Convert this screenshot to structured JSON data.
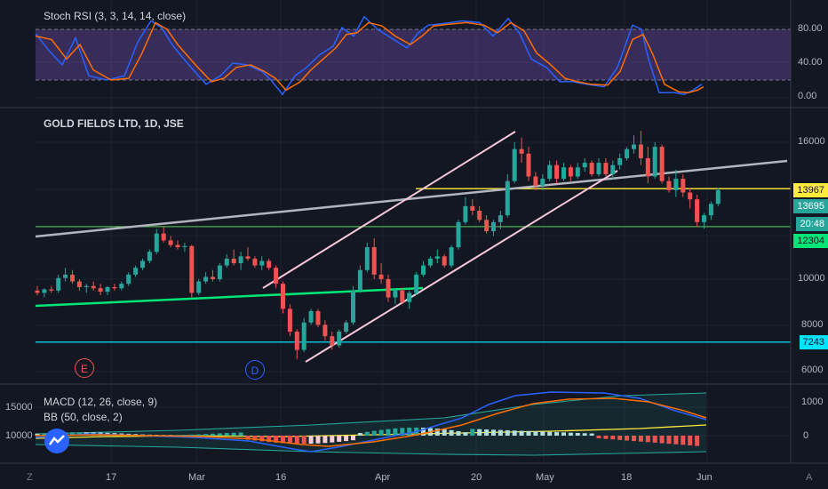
{
  "colors": {
    "background": "#131722",
    "up": "#26a69a",
    "down": "#ef5350",
    "stoch_k": "#2962ff",
    "stoch_d": "#ff6d00",
    "stoch_band": "#7e57c2",
    "trend_gray": "#b2b5be",
    "channel": "#f8c8d8",
    "support_green": "#00e676",
    "hline_yellow": "#ffeb3b",
    "hline_green": "#4caf50",
    "hline_cyan": "#00e5ff"
  },
  "stoch": {
    "title": "Stoch RSI (3, 3, 14, 14, close)",
    "axis": [
      "80.00",
      "40.00",
      "0.00"
    ]
  },
  "main": {
    "title": "GOLD FIELDS LTD, 1D, JSE",
    "axis": [
      "16000",
      "10000",
      "8000",
      "6000"
    ],
    "tags": {
      "t1": "13967",
      "t2": "13695",
      "t3": "20:48",
      "t4": "12304",
      "t5": "7243"
    },
    "markers": {
      "e": "E",
      "d": "D"
    }
  },
  "macd": {
    "title1": "MACD (12, 26, close, 9)",
    "title2": "BB (50, close, 2)",
    "left_axis": [
      "15000",
      "10000"
    ],
    "right_axis": [
      "1000",
      "0"
    ]
  },
  "time_axis": [
    "17",
    "Mar",
    "16",
    "Apr",
    "20",
    "May",
    "18",
    "Jun"
  ],
  "corner_left": "Z",
  "corner_right": "A",
  "chart_data": {
    "type": "candlestick",
    "symbol": "GOLD FIELDS LTD, 1D, JSE",
    "ohlc": [
      [
        9500,
        9700,
        9300,
        9400
      ],
      [
        9400,
        9600,
        9200,
        9550
      ],
      [
        9550,
        9700,
        9400,
        9500
      ],
      [
        9500,
        10200,
        9400,
        10050
      ],
      [
        10050,
        10500,
        9900,
        10200
      ],
      [
        10200,
        10400,
        9800,
        9900
      ],
      [
        9900,
        10000,
        9500,
        9650
      ],
      [
        9650,
        9800,
        9400,
        9700
      ],
      [
        9700,
        9900,
        9500,
        9600
      ],
      [
        9600,
        9800,
        9300,
        9450
      ],
      [
        9450,
        9700,
        9300,
        9650
      ],
      [
        9650,
        9800,
        9500,
        9600
      ],
      [
        9600,
        9900,
        9500,
        9800
      ],
      [
        9800,
        10300,
        9700,
        10200
      ],
      [
        10200,
        10600,
        10100,
        10500
      ],
      [
        10500,
        10900,
        10400,
        10800
      ],
      [
        10800,
        11300,
        10700,
        11200
      ],
      [
        11200,
        12200,
        11100,
        12000
      ],
      [
        12000,
        12300,
        11600,
        11700
      ],
      [
        11700,
        11900,
        11400,
        11500
      ],
      [
        11500,
        11700,
        11300,
        11400
      ],
      [
        11400,
        11600,
        11200,
        11450
      ],
      [
        11450,
        11500,
        9200,
        9400
      ],
      [
        9400,
        10000,
        9300,
        9900
      ],
      [
        9900,
        10300,
        9800,
        10100
      ],
      [
        10100,
        10400,
        9900,
        10000
      ],
      [
        10000,
        10700,
        9900,
        10600
      ],
      [
        10600,
        11100,
        10500,
        10900
      ],
      [
        10900,
        11300,
        10600,
        10700
      ],
      [
        10700,
        11200,
        10400,
        11000
      ],
      [
        11000,
        11400,
        10800,
        10900
      ],
      [
        10900,
        11000,
        10500,
        10600
      ],
      [
        10600,
        11000,
        10400,
        10800
      ],
      [
        10800,
        10900,
        10400,
        10500
      ],
      [
        10500,
        10600,
        9600,
        9800
      ],
      [
        9800,
        9900,
        8500,
        8700
      ],
      [
        8700,
        8900,
        7500,
        7700
      ],
      [
        7700,
        7800,
        6500,
        6900
      ],
      [
        6900,
        8300,
        6800,
        8100
      ],
      [
        8100,
        8700,
        8000,
        8600
      ],
      [
        8600,
        8700,
        7900,
        8000
      ],
      [
        8000,
        8200,
        7300,
        7500
      ],
      [
        7500,
        7700,
        6900,
        7100
      ],
      [
        7100,
        7800,
        7000,
        7700
      ],
      [
        7700,
        8200,
        7600,
        8100
      ],
      [
        8100,
        9700,
        8000,
        9500
      ],
      [
        9500,
        10600,
        9400,
        10400
      ],
      [
        10400,
        11600,
        10300,
        11400
      ],
      [
        11400,
        11800,
        10000,
        10200
      ],
      [
        10200,
        10700,
        9800,
        10000
      ],
      [
        10000,
        10200,
        9000,
        9200
      ],
      [
        9200,
        9600,
        8900,
        9500
      ],
      [
        9500,
        9600,
        8900,
        9000
      ],
      [
        9000,
        9500,
        8700,
        9400
      ],
      [
        9400,
        10300,
        9300,
        10200
      ],
      [
        10200,
        10800,
        10100,
        10600
      ],
      [
        10600,
        11000,
        10500,
        10900
      ],
      [
        10900,
        11300,
        10700,
        11000
      ],
      [
        11000,
        11100,
        10500,
        10600
      ],
      [
        10600,
        11500,
        10500,
        11400
      ],
      [
        11400,
        12600,
        11300,
        12500
      ],
      [
        12500,
        13600,
        12400,
        13200
      ],
      [
        13200,
        13500,
        12800,
        13000
      ],
      [
        13000,
        13200,
        12500,
        12600
      ],
      [
        12600,
        12800,
        12000,
        12100
      ],
      [
        12100,
        12600,
        11900,
        12500
      ],
      [
        12500,
        13000,
        12200,
        12800
      ],
      [
        12800,
        14600,
        12700,
        14300
      ],
      [
        14300,
        16000,
        14200,
        15700
      ],
      [
        15700,
        16200,
        15100,
        15500
      ],
      [
        15500,
        15800,
        14300,
        14500
      ],
      [
        14500,
        14700,
        13900,
        14100
      ],
      [
        14100,
        14600,
        13900,
        14400
      ],
      [
        14400,
        15200,
        14300,
        15000
      ],
      [
        15000,
        15200,
        14200,
        14400
      ],
      [
        14400,
        15100,
        14300,
        14900
      ],
      [
        14900,
        15000,
        14300,
        14500
      ],
      [
        14500,
        15100,
        14400,
        14900
      ],
      [
        14900,
        15300,
        14700,
        15100
      ],
      [
        15100,
        15200,
        14500,
        14600
      ],
      [
        14600,
        15300,
        14500,
        15100
      ],
      [
        15100,
        15300,
        14500,
        14600
      ],
      [
        14600,
        15200,
        14400,
        15000
      ],
      [
        15000,
        15500,
        14800,
        15300
      ],
      [
        15300,
        15800,
        15200,
        15700
      ],
      [
        15700,
        16300,
        15500,
        15900
      ],
      [
        15900,
        16500,
        15000,
        15300
      ],
      [
        15300,
        15800,
        14200,
        14500
      ],
      [
        14500,
        16000,
        14400,
        15800
      ],
      [
        15800,
        15900,
        14200,
        14300
      ],
      [
        14300,
        14500,
        13800,
        13900
      ],
      [
        13900,
        14800,
        13600,
        14400
      ],
      [
        14400,
        14600,
        13600,
        13800
      ],
      [
        13800,
        14000,
        13100,
        13500
      ],
      [
        13500,
        13700,
        12300,
        12500
      ],
      [
        12500,
        12900,
        12200,
        12800
      ],
      [
        12800,
        13400,
        12600,
        13300
      ],
      [
        13300,
        14000,
        13200,
        13900
      ]
    ]
  }
}
